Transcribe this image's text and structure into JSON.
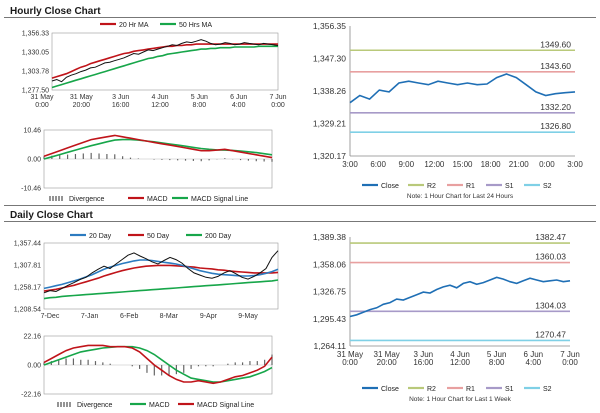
{
  "sections": {
    "hourly_title": "Hourly Close Chart",
    "daily_title": "Daily Close Chart"
  },
  "colors": {
    "price": "#111111",
    "ma_short": "#c0141a",
    "ma_long": "#17a64a",
    "ma_mid_blue": "#2c7bc0",
    "close_line": "#1f6fb5",
    "r2": "#b9c97a",
    "r1": "#e8a0a0",
    "s1": "#a79ac8",
    "s2": "#7fd0e6",
    "divergence": "#666666"
  },
  "chart_data": [
    {
      "id": "hourly-price",
      "type": "line",
      "title": "Hourly Close Chart",
      "legend": [
        "20 Hr MA",
        "50 Hrs MA"
      ],
      "y_ticks": [
        "1,356.33",
        "1,330.05",
        "1,303.78",
        "1,277.50"
      ],
      "ylim": [
        1277.5,
        1356.33
      ],
      "x_ticks": [
        "31 May\n0:00",
        "31 May\n20:00",
        "3 Jun\n16:00",
        "4 Jun\n12:00",
        "5 Jun\n8:00",
        "6 Jun\n4:00",
        "7 Jun\n0:00"
      ],
      "series": [
        {
          "name": "Price",
          "values": [
            1290,
            1292,
            1289,
            1295,
            1298,
            1300,
            1303,
            1305,
            1308,
            1309,
            1312,
            1315,
            1316,
            1318,
            1320,
            1322,
            1325,
            1328,
            1327,
            1330,
            1333,
            1332,
            1334,
            1336,
            1338,
            1340,
            1339,
            1342,
            1344,
            1343,
            1345,
            1347,
            1345,
            1342,
            1340,
            1341,
            1343,
            1342,
            1340,
            1341,
            1343,
            1342,
            1341,
            1340,
            1342,
            1341,
            1340,
            1339
          ]
        },
        {
          "name": "20 Hr MA",
          "values": [
            1294,
            1296,
            1298,
            1300,
            1303,
            1306,
            1309,
            1311,
            1314,
            1316,
            1318,
            1320,
            1322,
            1324,
            1326,
            1328,
            1329,
            1331,
            1332,
            1333,
            1334,
            1335,
            1336,
            1337,
            1338,
            1338,
            1339,
            1339,
            1340,
            1340,
            1341,
            1341,
            1341,
            1341,
            1341,
            1341,
            1341,
            1341,
            1341,
            1341,
            1341,
            1341,
            1341,
            1341,
            1341,
            1341,
            1341,
            1341
          ]
        },
        {
          "name": "50 Hrs MA",
          "values": [
            1281,
            1283,
            1285,
            1287,
            1289,
            1291,
            1293,
            1295,
            1297,
            1299,
            1301,
            1303,
            1305,
            1307,
            1309,
            1311,
            1313,
            1315,
            1317,
            1319,
            1321,
            1322,
            1324,
            1325,
            1327,
            1328,
            1329,
            1330,
            1331,
            1332,
            1333,
            1334,
            1334,
            1335,
            1335,
            1336,
            1336,
            1336,
            1337,
            1337,
            1337,
            1337,
            1337,
            1338,
            1338,
            1338,
            1338,
            1338
          ]
        }
      ]
    },
    {
      "id": "hourly-macd",
      "type": "line",
      "legend": [
        "Divergence",
        "MACD",
        "MACD Signal Line"
      ],
      "y_ticks": [
        "10.46",
        "0.00",
        "-10.46"
      ],
      "ylim": [
        -10.46,
        10.46
      ],
      "series": [
        {
          "name": "MACD",
          "values": [
            1,
            2,
            3,
            4,
            5,
            6,
            7,
            7.5,
            8,
            8.5,
            8,
            7.5,
            7,
            6.5,
            6,
            5.5,
            5,
            4.5,
            4,
            3.5,
            3,
            3,
            3.2,
            3.5,
            3,
            2.5,
            2,
            1.5,
            1,
            0.5
          ]
        },
        {
          "name": "MACD Signal Line",
          "values": [
            0,
            0.8,
            1.6,
            2.4,
            3.2,
            4,
            4.8,
            5.5,
            6.2,
            6.8,
            7,
            7,
            6.8,
            6.5,
            6.2,
            5.8,
            5.4,
            5,
            4.6,
            4.2,
            3.8,
            3.5,
            3.3,
            3.2,
            3.1,
            2.9,
            2.6,
            2.3,
            1.9,
            1.5
          ]
        },
        {
          "name": "Divergence",
          "values": [
            1,
            1.2,
            1.4,
            1.6,
            1.8,
            2,
            2.2,
            2,
            1.8,
            1.7,
            1,
            0.5,
            0.2,
            0,
            -0.2,
            -0.3,
            -0.4,
            -0.5,
            -0.6,
            -0.7,
            -0.8,
            -0.5,
            -0.1,
            0.3,
            -0.1,
            -0.4,
            -0.6,
            -0.8,
            -0.9,
            -1
          ]
        }
      ]
    },
    {
      "id": "hourly-pivot",
      "type": "line",
      "y_ticks": [
        "1,356.35",
        "1,347.30",
        "1,338.26",
        "1,329.21",
        "1,320.17"
      ],
      "ylim": [
        1320.17,
        1356.35
      ],
      "x_ticks": [
        "3:00",
        "6:00",
        "9:00",
        "12:00",
        "15:00",
        "18:00",
        "21:00",
        "0:00",
        "3:00"
      ],
      "levels": [
        {
          "name": "R2",
          "value": 1349.6,
          "label": "1349.60"
        },
        {
          "name": "R1",
          "value": 1343.6,
          "label": "1343.60"
        },
        {
          "name": "S1",
          "value": 1332.2,
          "label": "1332.20"
        },
        {
          "name": "S2",
          "value": 1326.8,
          "label": "1326.80"
        }
      ],
      "series": [
        {
          "name": "Close",
          "values": [
            1335,
            1337,
            1336,
            1338.5,
            1338,
            1340.5,
            1341,
            1340.5,
            1340,
            1341,
            1340.5,
            1340,
            1340.5,
            1340,
            1340.2,
            1342,
            1343,
            1342,
            1340,
            1338,
            1337,
            1337.5,
            1337.8,
            1338
          ]
        }
      ],
      "legend": [
        "Close",
        "R2",
        "R1",
        "S1",
        "S2"
      ],
      "note": "Note: 1 Hour Chart for Last 24 Hours"
    },
    {
      "id": "daily-price",
      "type": "line",
      "title": "Daily Close Chart",
      "legend": [
        "20 Day",
        "50 Day",
        "200 Day"
      ],
      "y_ticks": [
        "1,357.44",
        "1,307.81",
        "1,258.17",
        "1,208.54"
      ],
      "ylim": [
        1208.54,
        1357.44
      ],
      "x_ticks": [
        "7-Dec",
        "7-Jan",
        "6-Feb",
        "8-Mar",
        "9-Apr",
        "9-May"
      ],
      "series": [
        {
          "name": "Price",
          "values": [
            1245,
            1250,
            1248,
            1255,
            1262,
            1268,
            1275,
            1280,
            1290,
            1298,
            1305,
            1300,
            1310,
            1320,
            1330,
            1335,
            1328,
            1322,
            1315,
            1310,
            1318,
            1325,
            1320,
            1312,
            1300,
            1290,
            1285,
            1280,
            1278,
            1282,
            1290,
            1295,
            1288,
            1280,
            1276,
            1282,
            1290,
            1300,
            1325,
            1340
          ]
        },
        {
          "name": "20 Day",
          "values": [
            1255,
            1258,
            1261,
            1264,
            1268,
            1272,
            1276,
            1281,
            1286,
            1292,
            1298,
            1303,
            1307,
            1311,
            1314,
            1317,
            1319,
            1319,
            1318,
            1316,
            1314,
            1312,
            1310,
            1307,
            1303,
            1299,
            1295,
            1292,
            1289,
            1287,
            1286,
            1285,
            1284,
            1283,
            1283,
            1284,
            1286,
            1289,
            1293,
            1298
          ]
        },
        {
          "name": "50 Day",
          "values": [
            1249,
            1251,
            1253,
            1256,
            1259,
            1262,
            1266,
            1270,
            1274,
            1278,
            1283,
            1287,
            1291,
            1295,
            1298,
            1301,
            1303,
            1305,
            1306,
            1307,
            1307,
            1307,
            1306,
            1305,
            1304,
            1303,
            1301,
            1300,
            1299,
            1297,
            1296,
            1294,
            1293,
            1292,
            1291,
            1290,
            1290,
            1290,
            1290,
            1291
          ]
        },
        {
          "name": "200 Day",
          "values": [
            1232,
            1234,
            1235,
            1237,
            1238,
            1239,
            1240,
            1241,
            1242,
            1243,
            1244,
            1245,
            1246,
            1247,
            1248,
            1249,
            1250,
            1251,
            1252,
            1253,
            1254,
            1255,
            1256,
            1257,
            1258,
            1259,
            1260,
            1261,
            1262,
            1263,
            1264,
            1265,
            1266,
            1267,
            1268,
            1269,
            1270,
            1271,
            1272,
            1274
          ]
        }
      ]
    },
    {
      "id": "daily-macd",
      "type": "line",
      "legend": [
        "Divergence",
        "MACD",
        "MACD Signal Line"
      ],
      "y_ticks": [
        "22.16",
        "0.00",
        "-22.16"
      ],
      "ylim": [
        -22.16,
        22.16
      ],
      "series": [
        {
          "name": "MACD",
          "values": [
            2,
            5,
            8,
            11,
            13,
            14,
            15,
            15,
            15,
            14,
            14,
            14,
            13,
            10,
            5,
            0,
            -4,
            -8,
            -11,
            -13,
            -13,
            -12,
            -13,
            -14,
            -13,
            -11,
            -9,
            -8,
            -6,
            -4,
            -1,
            6
          ]
        },
        {
          "name": "MACD Signal Line",
          "values": [
            0,
            2,
            4,
            6,
            8,
            10,
            11,
            12,
            13,
            13.5,
            14,
            14,
            14,
            13,
            11,
            8,
            4,
            0,
            -4,
            -7,
            -10,
            -11,
            -12,
            -13,
            -13,
            -12,
            -11,
            -10,
            -9,
            -7,
            -5,
            -2
          ]
        },
        {
          "name": "Divergence",
          "values": [
            2,
            3,
            4,
            5,
            5,
            4,
            4,
            3,
            2,
            1,
            0,
            0,
            -1,
            -3,
            -6,
            -8,
            -8,
            -8,
            -7,
            -6,
            -3,
            -1,
            -1,
            -1,
            0,
            1,
            2,
            2,
            3,
            3,
            4,
            8
          ]
        }
      ]
    },
    {
      "id": "daily-pivot",
      "type": "line",
      "y_ticks": [
        "1,389.38",
        "1,358.06",
        "1,326.75",
        "1,295.43",
        "1,264.11"
      ],
      "ylim": [
        1264.11,
        1389.38
      ],
      "x_ticks": [
        "31 May\n0:00",
        "31 May\n20:00",
        "3 Jun\n16:00",
        "4 Jun\n12:00",
        "5 Jun\n8:00",
        "6 Jun\n4:00",
        "7 Jun\n0:00"
      ],
      "levels": [
        {
          "name": "R2",
          "value": 1382.47,
          "label": "1382.47"
        },
        {
          "name": "R1",
          "value": 1360.03,
          "label": "1360.03"
        },
        {
          "name": "S1",
          "value": 1304.03,
          "label": "1304.03"
        },
        {
          "name": "S2",
          "value": 1270.47,
          "label": "1270.47"
        }
      ],
      "series": [
        {
          "name": "Close",
          "values": [
            1298,
            1300,
            1303,
            1306,
            1308,
            1312,
            1314,
            1318,
            1317,
            1320,
            1323,
            1326,
            1325,
            1329,
            1332,
            1334,
            1331,
            1336,
            1338,
            1335,
            1337,
            1340,
            1343,
            1341,
            1338,
            1336,
            1339,
            1342,
            1340,
            1338,
            1339,
            1340,
            1338,
            1339
          ]
        }
      ],
      "legend": [
        "Close",
        "R2",
        "R1",
        "S1",
        "S2"
      ],
      "note": "Note: 1 Hour Chart for Last 1 Week"
    }
  ]
}
